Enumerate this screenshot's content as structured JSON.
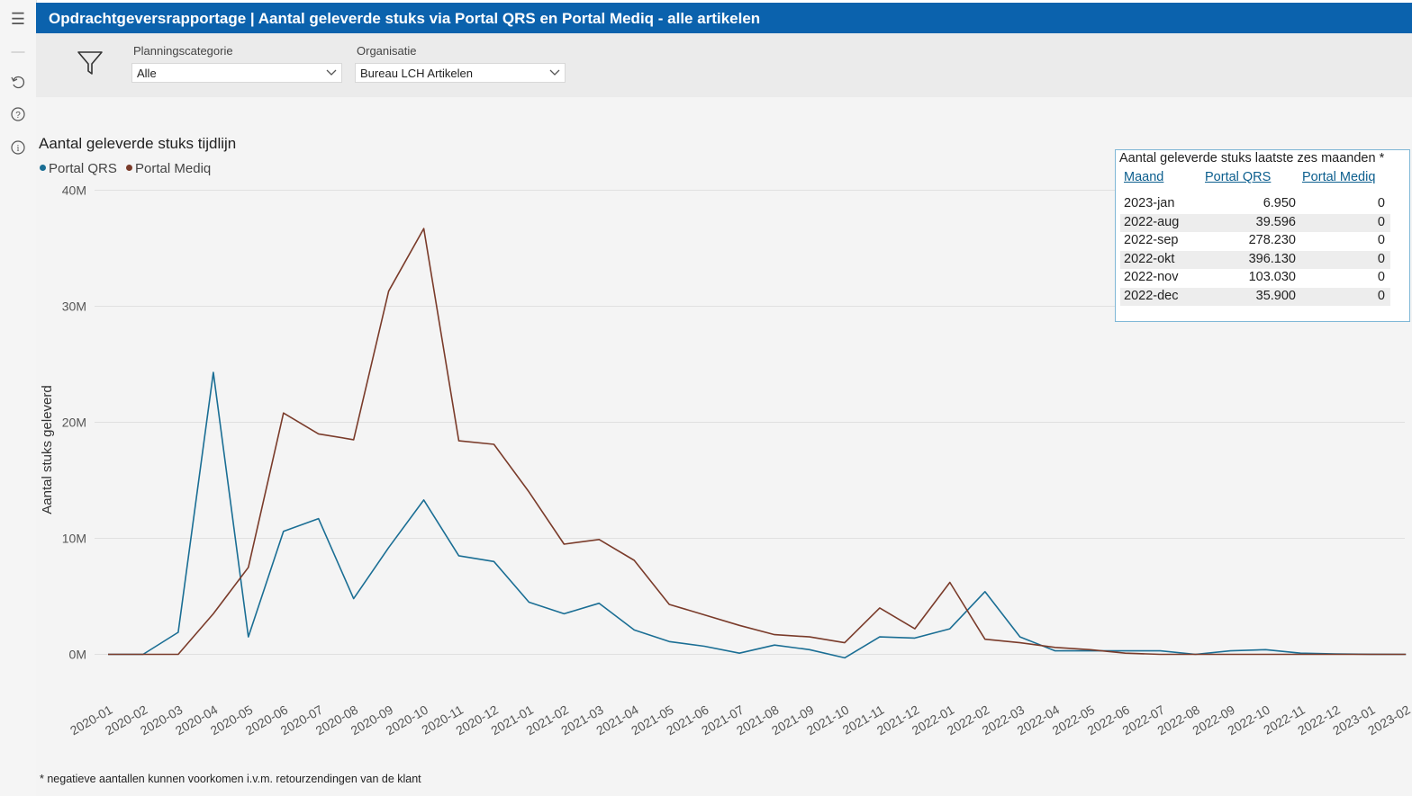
{
  "header": {
    "title": "Opdrachtgeversrapportage | Aantal geleverde stuks via Portal QRS en Portal Mediq - alle artikelen"
  },
  "sidebar": {
    "icons": [
      "menu-icon",
      "minus-icon",
      "undo-icon",
      "help-icon",
      "info-icon"
    ]
  },
  "filters": {
    "planning": {
      "label": "Planningscategorie",
      "value": "Alle"
    },
    "organisatie": {
      "label": "Organisatie",
      "value": "Bureau LCH Artikelen"
    }
  },
  "colors": {
    "qrs": "#1a6e94",
    "mediq": "#7a3b2a",
    "header": "#0b62ad"
  },
  "chart_data": {
    "type": "line",
    "title": "Aantal geleverde stuks tijdlijn",
    "xlabel": "",
    "ylabel": "Aantal stuks geleverd",
    "ylim": [
      -2,
      40
    ],
    "yticks": [
      0,
      10,
      20,
      30,
      40
    ],
    "ytick_labels": [
      "0M",
      "10M",
      "20M",
      "30M",
      "40M"
    ],
    "grid": true,
    "legend": "top-left",
    "categories": [
      "2020-01",
      "2020-02",
      "2020-03",
      "2020-04",
      "2020-05",
      "2020-06",
      "2020-07",
      "2020-08",
      "2020-09",
      "2020-10",
      "2020-11",
      "2020-12",
      "2021-01",
      "2021-02",
      "2021-03",
      "2021-04",
      "2021-05",
      "2021-06",
      "2021-07",
      "2021-08",
      "2021-09",
      "2021-10",
      "2021-11",
      "2021-12",
      "2022-01",
      "2022-02",
      "2022-03",
      "2022-04",
      "2022-05",
      "2022-06",
      "2022-07",
      "2022-08",
      "2022-09",
      "2022-10",
      "2022-11",
      "2022-12",
      "2023-01",
      "2023-02"
    ],
    "series": [
      {
        "name": "Portal QRS",
        "values": [
          0,
          0,
          1.9,
          24.3,
          1.5,
          10.6,
          11.7,
          4.8,
          9.2,
          13.3,
          8.5,
          8.0,
          4.5,
          3.5,
          4.4,
          2.1,
          1.1,
          0.7,
          0.1,
          0.8,
          0.4,
          -0.3,
          1.5,
          1.4,
          2.2,
          5.4,
          1.5,
          0.3,
          0.3,
          0.3,
          0.3,
          0.0,
          0.3,
          0.4,
          0.1,
          0.04,
          0.007,
          0
        ]
      },
      {
        "name": "Portal Mediq",
        "values": [
          0,
          0,
          0,
          3.5,
          7.5,
          20.8,
          19.0,
          18.5,
          31.3,
          36.7,
          18.4,
          18.1,
          14.0,
          9.5,
          9.9,
          8.1,
          4.3,
          3.4,
          2.5,
          1.7,
          1.5,
          1.0,
          4.0,
          2.2,
          6.2,
          1.3,
          1.0,
          0.6,
          0.4,
          0.1,
          0,
          0,
          0,
          0,
          0,
          0,
          0,
          0
        ]
      }
    ]
  },
  "table": {
    "title": "Aantal geleverde stuks laatste zes maanden *",
    "headers": [
      "Maand",
      "Portal QRS",
      "Portal Mediq"
    ],
    "rows": [
      [
        "2023-jan",
        "6.950",
        "0"
      ],
      [
        "2022-aug",
        "39.596",
        "0"
      ],
      [
        "2022-sep",
        "278.230",
        "0"
      ],
      [
        "2022-okt",
        "396.130",
        "0"
      ],
      [
        "2022-nov",
        "103.030",
        "0"
      ],
      [
        "2022-dec",
        "35.900",
        "0"
      ]
    ]
  },
  "footnote": "* negatieve aantallen kunnen voorkomen i.v.m. retourzendingen van de klant"
}
